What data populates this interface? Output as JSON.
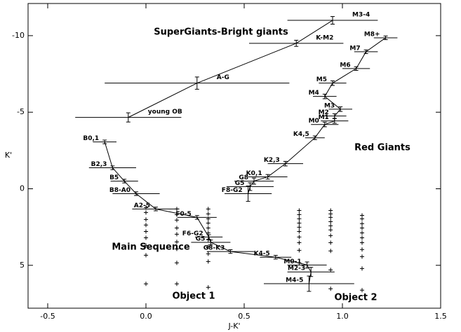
{
  "chart_data": {
    "type": "scatter",
    "x_label": "J-K'",
    "y_label": "K'",
    "xlim": [
      -0.6,
      1.5
    ],
    "ylim": [
      -12.1,
      7.8
    ],
    "y_inverted": true,
    "xticks": [
      -0.5,
      {
        "value": 0,
        "label": "0.0"
      },
      0.5,
      {
        "value": 1,
        "label": "1.0"
      },
      1.5
    ],
    "yticks": [
      -10,
      -5,
      0,
      5
    ],
    "annotations": [
      "SuperGiants-Bright giants",
      "Red Giants",
      "Main Sequence",
      "Object 1",
      "Object 2"
    ],
    "series": [
      {
        "name": "Supergiants",
        "connected": true,
        "labels": [
          "young OB",
          "A-G",
          "K-M2",
          "M3-4"
        ],
        "x": [
          -0.09,
          0.26,
          0.765,
          0.95
        ],
        "values": [
          -4.66,
          -6.9,
          -9.5,
          -11.0
        ],
        "xerr": [
          0.27,
          0.47,
          0.24,
          0.23
        ],
        "yerr": [
          0.3,
          0.4,
          0.2,
          0.25
        ]
      },
      {
        "name": "Red Giants",
        "connected": true,
        "labels": [
          "M8+",
          "M7",
          "M6",
          "M5",
          "M4",
          "M3",
          "M2",
          "M1",
          "M0",
          "K4,5",
          "K2,3",
          "K0,1",
          "G8",
          "G5",
          "F8-G2"
        ],
        "x": [
          1.22,
          1.12,
          1.07,
          0.95,
          0.91,
          0.99,
          0.96,
          0.96,
          0.91,
          0.86,
          0.71,
          0.62,
          0.55,
          0.53,
          0.52
        ],
        "values": [
          -9.86,
          -8.95,
          -7.85,
          -6.9,
          -6.03,
          -5.2,
          -4.75,
          -4.43,
          -4.2,
          -3.33,
          -1.64,
          -0.78,
          -0.5,
          -0.14,
          0.32
        ],
        "xerr": [
          0.06,
          0.06,
          0.07,
          0.07,
          0.06,
          0.06,
          0.06,
          0.07,
          0.07,
          0.05,
          0.09,
          0.1,
          0.1,
          0.12,
          0.12
        ],
        "yerr": [
          0.12,
          0.12,
          0.12,
          0.15,
          0.15,
          0.15,
          0.15,
          0.15,
          0.15,
          0.12,
          0.15,
          0.15,
          0.2,
          0.25,
          0.5
        ]
      },
      {
        "name": "Main Sequence",
        "connected": true,
        "labels": [
          "B0,1",
          "B2,3",
          "B5",
          "B8-A0",
          "A2-5",
          "F0-5",
          "F6-G2",
          "G5",
          "G8-K3",
          "K4-5",
          "M0-1",
          "M2-3",
          "M4-5"
        ],
        "x": [
          -0.21,
          -0.17,
          -0.11,
          -0.05,
          0.05,
          0.26,
          0.32,
          0.33,
          0.43,
          0.66,
          0.82,
          0.84,
          0.83
        ],
        "values": [
          -3.06,
          -1.37,
          -0.5,
          0.32,
          1.32,
          1.87,
          3.15,
          3.5,
          4.1,
          4.47,
          4.98,
          5.43,
          6.2
        ],
        "xerr": [
          0.06,
          0.12,
          0.07,
          0.12,
          0.12,
          0.1,
          0.07,
          0.1,
          0.12,
          0.08,
          0.1,
          0.12,
          0.23
        ],
        "yerr": [
          0.12,
          0.12,
          0.12,
          0.12,
          0.12,
          0.12,
          0.15,
          0.15,
          0.12,
          0.12,
          0.2,
          0.3,
          0.5
        ]
      },
      {
        "name": "Object 1",
        "connected": false,
        "x": [
          0,
          0,
          0,
          0,
          0,
          0,
          0,
          0,
          0,
          0.157,
          0.157,
          0.157,
          0.157,
          0.157,
          0.157,
          0.157,
          0.157,
          0.157,
          0.317,
          0.317,
          0.317,
          0.317,
          0.317,
          0.317,
          0.317,
          0.317,
          0.317,
          0.317,
          0.317
        ],
        "values": [
          1.23,
          1.55,
          2.01,
          2.37,
          2.79,
          3.2,
          3.7,
          4.34,
          6.21,
          1.32,
          1.69,
          2.05,
          2.56,
          2.97,
          3.47,
          3.93,
          4.84,
          6.21,
          1.32,
          1.64,
          1.96,
          2.24,
          2.56,
          2.88,
          3.33,
          3.79,
          4.25,
          4.75,
          6.44
        ]
      },
      {
        "name": "Object 2",
        "connected": false,
        "x": [
          0.78,
          0.78,
          0.78,
          0.78,
          0.78,
          0.78,
          0.78,
          0.78,
          0.78,
          0.78,
          0.94,
          0.94,
          0.94,
          0.94,
          0.94,
          0.94,
          0.94,
          0.94,
          0.94,
          0.94,
          0.94,
          1.1,
          1.1,
          1.1,
          1.1,
          1.1,
          1.1,
          1.1,
          1.1,
          1.1,
          1.1,
          1.1
        ],
        "values": [
          1.42,
          1.69,
          1.96,
          2.24,
          2.51,
          2.79,
          3.15,
          3.52,
          4.02,
          4.84,
          1.42,
          1.64,
          1.87,
          2.15,
          2.42,
          2.69,
          3.06,
          3.52,
          4.06,
          5.3,
          6.53,
          1.74,
          1.96,
          2.28,
          2.56,
          2.88,
          3.2,
          3.52,
          3.97,
          4.43,
          5.21,
          6.62
        ]
      }
    ]
  }
}
